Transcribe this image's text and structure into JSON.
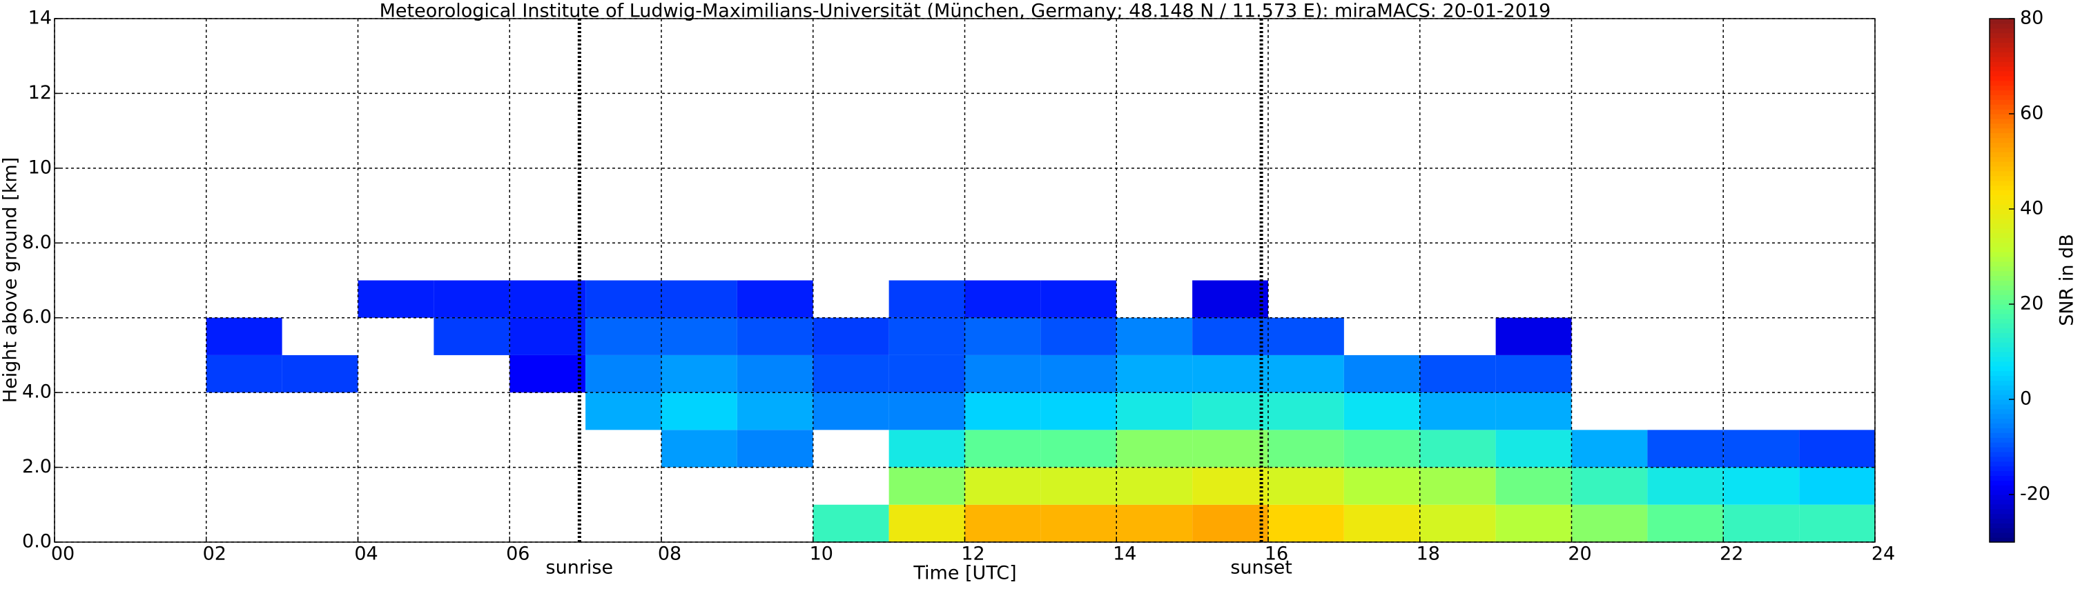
{
  "chart_data": {
    "type": "heatmap",
    "title": "Meteorological Institute of Ludwig-Maximilians-Universität (München, Germany; 48.148 N / 11.573 E):    miraMACS: 20-01-2019",
    "x_label": "Time [UTC]",
    "y_label": "Height above ground [km]",
    "x_edges": [
      0,
      1,
      2,
      3,
      4,
      5,
      6,
      7,
      8,
      9,
      10,
      11,
      12,
      13,
      14,
      15,
      16,
      17,
      18,
      19,
      20,
      21,
      22,
      23,
      24
    ],
    "y_edges": [
      0,
      1,
      2,
      3,
      4,
      5,
      6,
      7
    ],
    "z": [
      [
        null,
        null,
        null,
        null,
        null,
        null,
        null,
        null,
        null,
        null,
        15,
        40,
        50,
        50,
        50,
        52,
        45,
        40,
        35,
        30,
        25,
        20,
        15,
        15
      ],
      [
        null,
        null,
        null,
        null,
        null,
        null,
        null,
        null,
        null,
        null,
        null,
        25,
        35,
        35,
        35,
        38,
        35,
        30,
        28,
        22,
        15,
        10,
        8,
        5
      ],
      [
        null,
        null,
        null,
        null,
        null,
        null,
        null,
        null,
        -2,
        -5,
        null,
        10,
        20,
        20,
        25,
        25,
        22,
        20,
        15,
        10,
        0,
        -10,
        -10,
        -12
      ],
      [
        null,
        null,
        null,
        null,
        null,
        null,
        null,
        0,
        5,
        0,
        -5,
        -5,
        5,
        5,
        10,
        12,
        12,
        8,
        0,
        0,
        null,
        null,
        null,
        null
      ],
      [
        null,
        null,
        -12,
        -12,
        null,
        null,
        -18,
        -5,
        -2,
        -5,
        -10,
        -10,
        -5,
        -5,
        0,
        0,
        0,
        -5,
        -10,
        -10,
        null,
        null,
        null,
        null
      ],
      [
        null,
        null,
        -15,
        null,
        null,
        -12,
        -15,
        -8,
        -8,
        -10,
        -12,
        -10,
        -8,
        -10,
        -5,
        -10,
        -10,
        null,
        null,
        -20,
        null,
        null,
        null,
        null
      ],
      [
        null,
        null,
        null,
        null,
        -15,
        -15,
        -15,
        -12,
        -12,
        -15,
        null,
        -12,
        -15,
        -15,
        null,
        -20,
        null,
        null,
        null,
        null,
        null,
        null,
        null,
        null
      ]
    ],
    "xlim": [
      0,
      24
    ],
    "ylim": [
      0,
      14
    ],
    "xticks": [
      {
        "value": 0,
        "label": "00"
      },
      {
        "value": 2,
        "label": "02"
      },
      {
        "value": 4,
        "label": "04"
      },
      {
        "value": 6,
        "label": "06"
      },
      {
        "value": 8,
        "label": "08"
      },
      10,
      12,
      14,
      16,
      18,
      20,
      22,
      24
    ],
    "yticks": [
      {
        "value": 0,
        "label": "0.0"
      },
      {
        "value": 2,
        "label": "2.0"
      },
      {
        "value": 4,
        "label": "4.0"
      },
      {
        "value": 6,
        "label": "6.0"
      },
      {
        "value": 8,
        "label": "8.0"
      },
      10,
      12,
      14
    ],
    "grid": true,
    "annotations": [
      {
        "text": "sunrise",
        "x": 6.92
      },
      {
        "text": "sunset",
        "x": 15.91
      }
    ],
    "colorbar": {
      "label": "SNR in dB",
      "lim": [
        -30,
        80
      ],
      "ticks": [
        -20,
        0,
        20,
        40,
        60,
        80
      ],
      "colors": [
        "#00007f",
        "#0000ff",
        "#0080ff",
        "#00e0ff",
        "#50ffa0",
        "#c0ff30",
        "#ffe000",
        "#ff9000",
        "#ff2000",
        "#8b1a1a"
      ]
    }
  }
}
